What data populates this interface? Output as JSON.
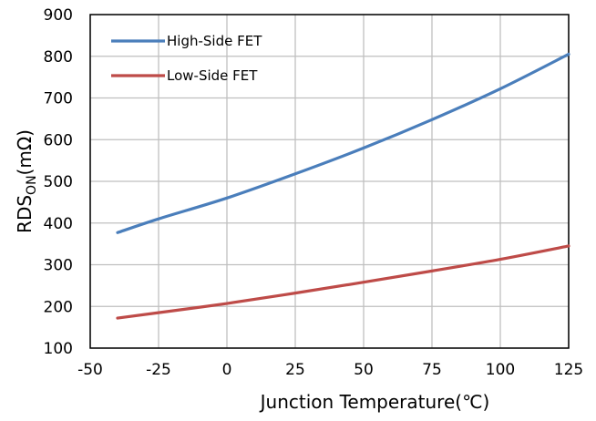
{
  "chart_data": {
    "type": "line",
    "xlabel": "Junction Temperature(℃)",
    "ylabel": {
      "main": "RDS",
      "sub": "ON",
      "suffix": "(mΩ)"
    },
    "xlim": [
      -50,
      125
    ],
    "ylim": [
      100,
      900
    ],
    "x_ticks": [
      -50,
      -25,
      0,
      25,
      50,
      75,
      100,
      125
    ],
    "y_ticks": [
      100,
      200,
      300,
      400,
      500,
      600,
      700,
      800,
      900
    ],
    "grid": true,
    "legend_position": "top-left",
    "series": [
      {
        "name": "High-Side FET",
        "color": "#4a7ebb",
        "x": [
          -40,
          -25,
          0,
          25,
          50,
          75,
          100,
          125
        ],
        "y": [
          377,
          410,
          460,
          518,
          580,
          648,
          722,
          805
        ]
      },
      {
        "name": "Low-Side FET",
        "color": "#be4b48",
        "x": [
          -40,
          -25,
          0,
          25,
          50,
          75,
          100,
          125
        ],
        "y": [
          172,
          185,
          207,
          232,
          258,
          285,
          313,
          345
        ]
      }
    ]
  }
}
